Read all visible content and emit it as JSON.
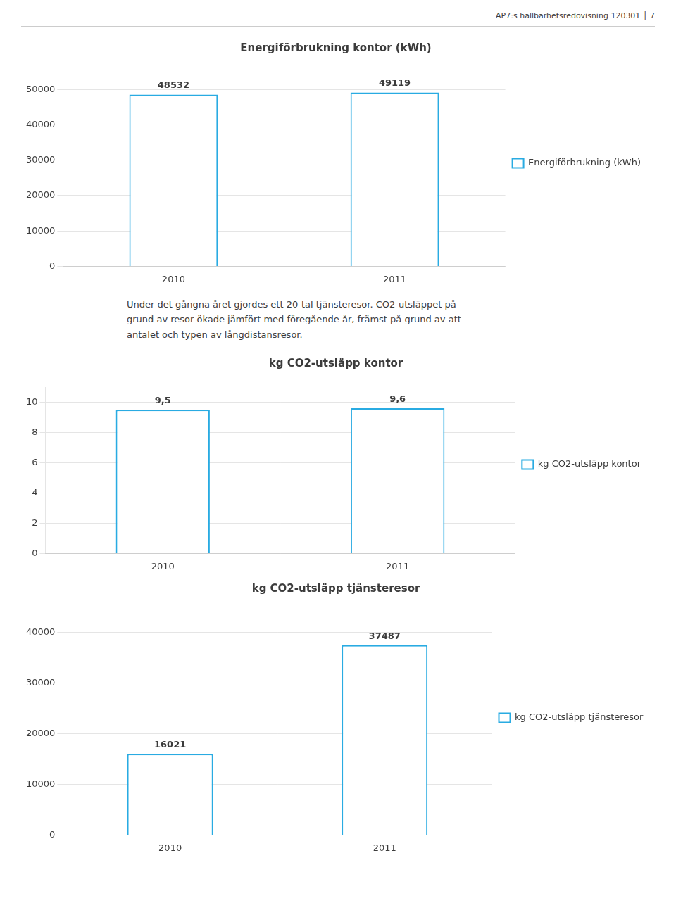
{
  "title": "AP7:s hällbarhetsredovisning 120301  │  7",
  "chart_data": [
    {
      "type": "bar",
      "title": "Energiförbrukning kontor (kWh)",
      "categories": [
        "2010",
        "2011"
      ],
      "series": [
        {
          "name": "Energiförbrukning (kWh)",
          "color": "#29ABE2",
          "values": [
            48532,
            49119
          ]
        }
      ],
      "ylim": [
        0,
        55000
      ],
      "yticks": [
        0,
        10000,
        20000,
        30000,
        40000,
        50000
      ],
      "grid": true,
      "legend": "right",
      "data_labels": true,
      "annotations": [
        "Under det gångna året gjordes ett 20-tal tjänsteresor. CO2-utsläppet på\ngrund av resor ökade jämfört med föregående år, främst på grund av att\nantalet och typen av långdistansresor."
      ]
    },
    {
      "type": "bar",
      "title": "kg CO2-utsläpp kontor",
      "categories": [
        "2010",
        "2011"
      ],
      "series": [
        {
          "name": "kg CO2-utsläpp kontor",
          "color": "#29ABE2",
          "values": [
            9.5,
            9.6
          ],
          "value_labels": [
            "9,5",
            "9,6"
          ]
        }
      ],
      "ylim": [
        0,
        11
      ],
      "yticks": [
        0,
        2,
        4,
        6,
        8,
        10
      ],
      "grid": true,
      "legend": "right",
      "data_labels": true
    },
    {
      "type": "bar",
      "title": "kg CO2-utsläpp tjänsteresor",
      "categories": [
        "2010",
        "2011"
      ],
      "series": [
        {
          "name": "kg CO2-utsläpp tjänsteresor",
          "color": "#29ABE2",
          "values": [
            16021,
            37487
          ]
        }
      ],
      "ylim": [
        0,
        44000
      ],
      "yticks": [
        0,
        10000,
        20000,
        30000,
        40000
      ],
      "grid": true,
      "legend": "right",
      "data_labels": true
    }
  ]
}
